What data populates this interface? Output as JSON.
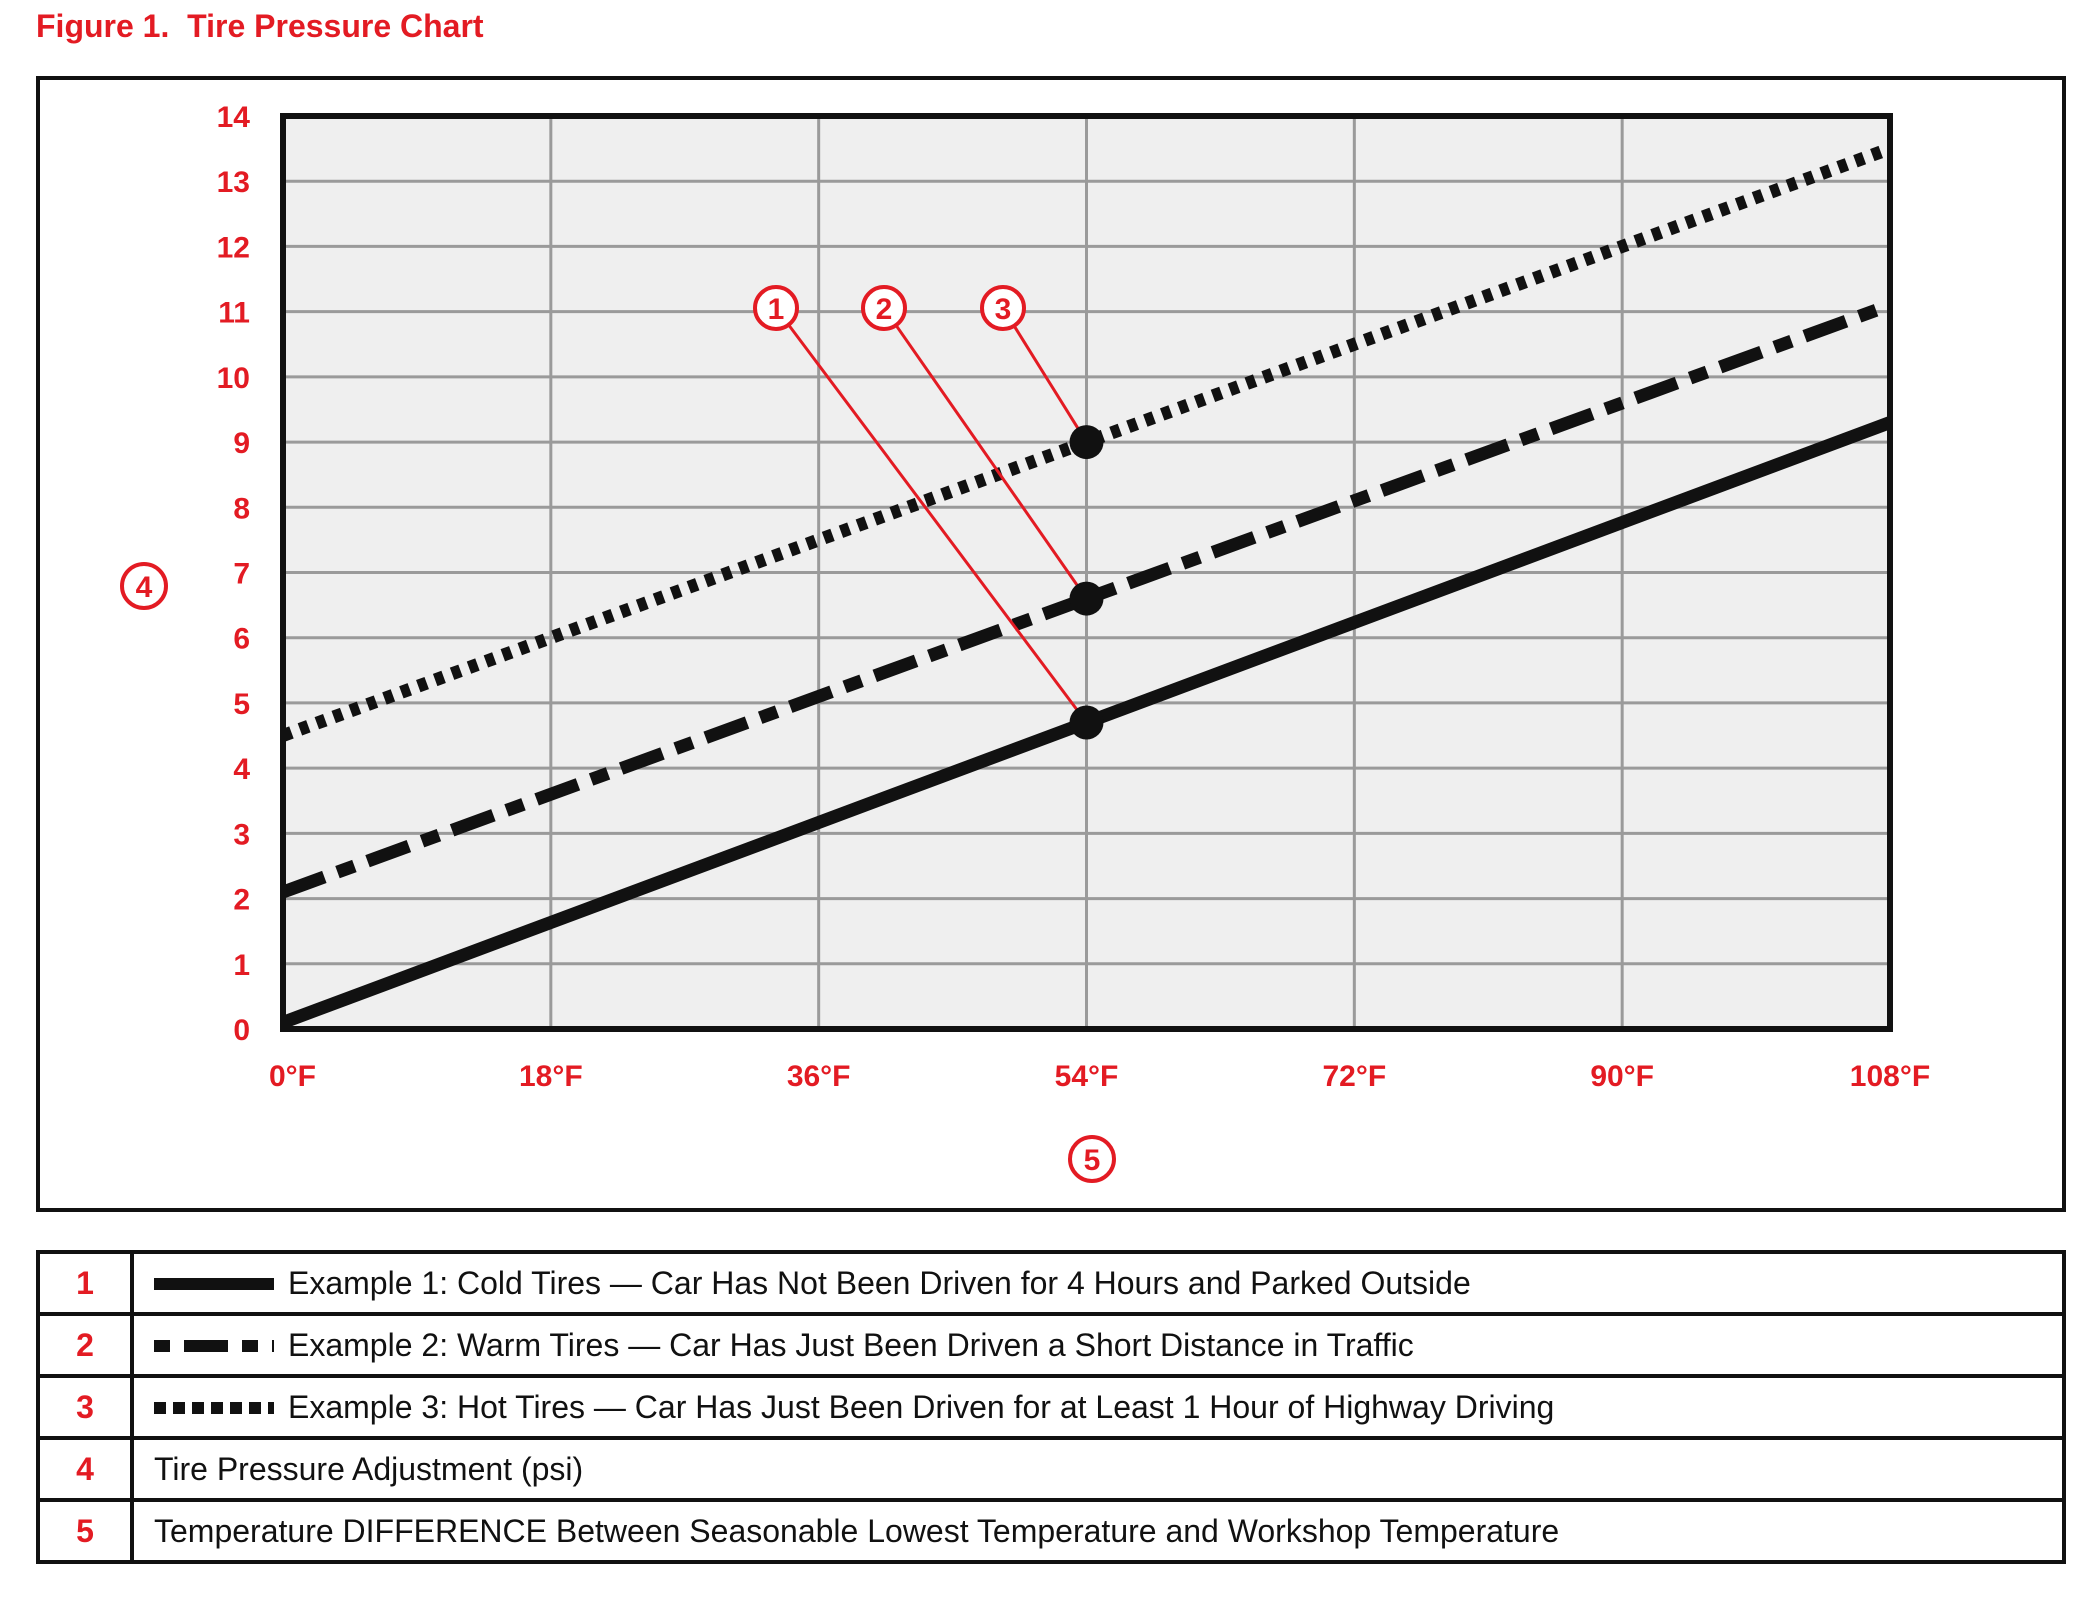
{
  "figure_title": "Figure 1.  Tire Pressure Chart",
  "colors": {
    "accent_red": "#e31b23",
    "line_black": "#111111",
    "grid_gray": "#9a9a9a",
    "plot_bg": "#efefef"
  },
  "chart_data": {
    "type": "line",
    "title": "",
    "xlabel": "",
    "ylabel": "",
    "x_ticks": [
      "0°F",
      "18°F",
      "36°F",
      "54°F",
      "72°F",
      "90°F",
      "108°F"
    ],
    "x_range": [
      0,
      108
    ],
    "y_ticks": [
      "0",
      "1",
      "2",
      "3",
      "4",
      "5",
      "6",
      "7",
      "8",
      "9",
      "10",
      "11",
      "12",
      "13",
      "14"
    ],
    "ylim": [
      0,
      14
    ],
    "grid": true,
    "series": [
      {
        "id": "1",
        "style": "solid",
        "x": [
          0,
          108
        ],
        "y": [
          0.1,
          9.3
        ]
      },
      {
        "id": "2",
        "style": "dashed",
        "x": [
          0,
          108
        ],
        "y": [
          2.1,
          11.1
        ]
      },
      {
        "id": "3",
        "style": "dotted",
        "x": [
          0,
          108
        ],
        "y": [
          4.5,
          13.5
        ]
      }
    ],
    "markers": [
      {
        "series": "1",
        "x": 54,
        "y": 4.7
      },
      {
        "series": "2",
        "x": 54,
        "y": 6.6
      },
      {
        "series": "3",
        "x": 54,
        "y": 9.0
      }
    ],
    "callouts": [
      {
        "label": "1",
        "target": {
          "x": 54,
          "y": 4.7
        }
      },
      {
        "label": "2",
        "target": {
          "x": 54,
          "y": 6.6
        }
      },
      {
        "label": "3",
        "target": {
          "x": 54,
          "y": 9.0
        }
      }
    ],
    "axis_callouts": {
      "y_axis": "4",
      "x_axis": "5"
    }
  },
  "legend": [
    {
      "num": "1",
      "swatch": "solid",
      "text": "Example 1: Cold Tires — Car Has Not Been Driven for 4 Hours and Parked Outside"
    },
    {
      "num": "2",
      "swatch": "dashed",
      "text": "Example 2: Warm Tires — Car Has Just Been Driven a Short Distance in Traffic"
    },
    {
      "num": "3",
      "swatch": "dotted",
      "text": "Example 3: Hot Tires — Car Has Just Been Driven for at Least 1 Hour of Highway Driving"
    },
    {
      "num": "4",
      "swatch": "none",
      "text": "Tire Pressure Adjustment (psi)"
    },
    {
      "num": "5",
      "swatch": "none",
      "text": "Temperature DIFFERENCE Between Seasonable Lowest Temperature and Workshop Temperature"
    }
  ]
}
